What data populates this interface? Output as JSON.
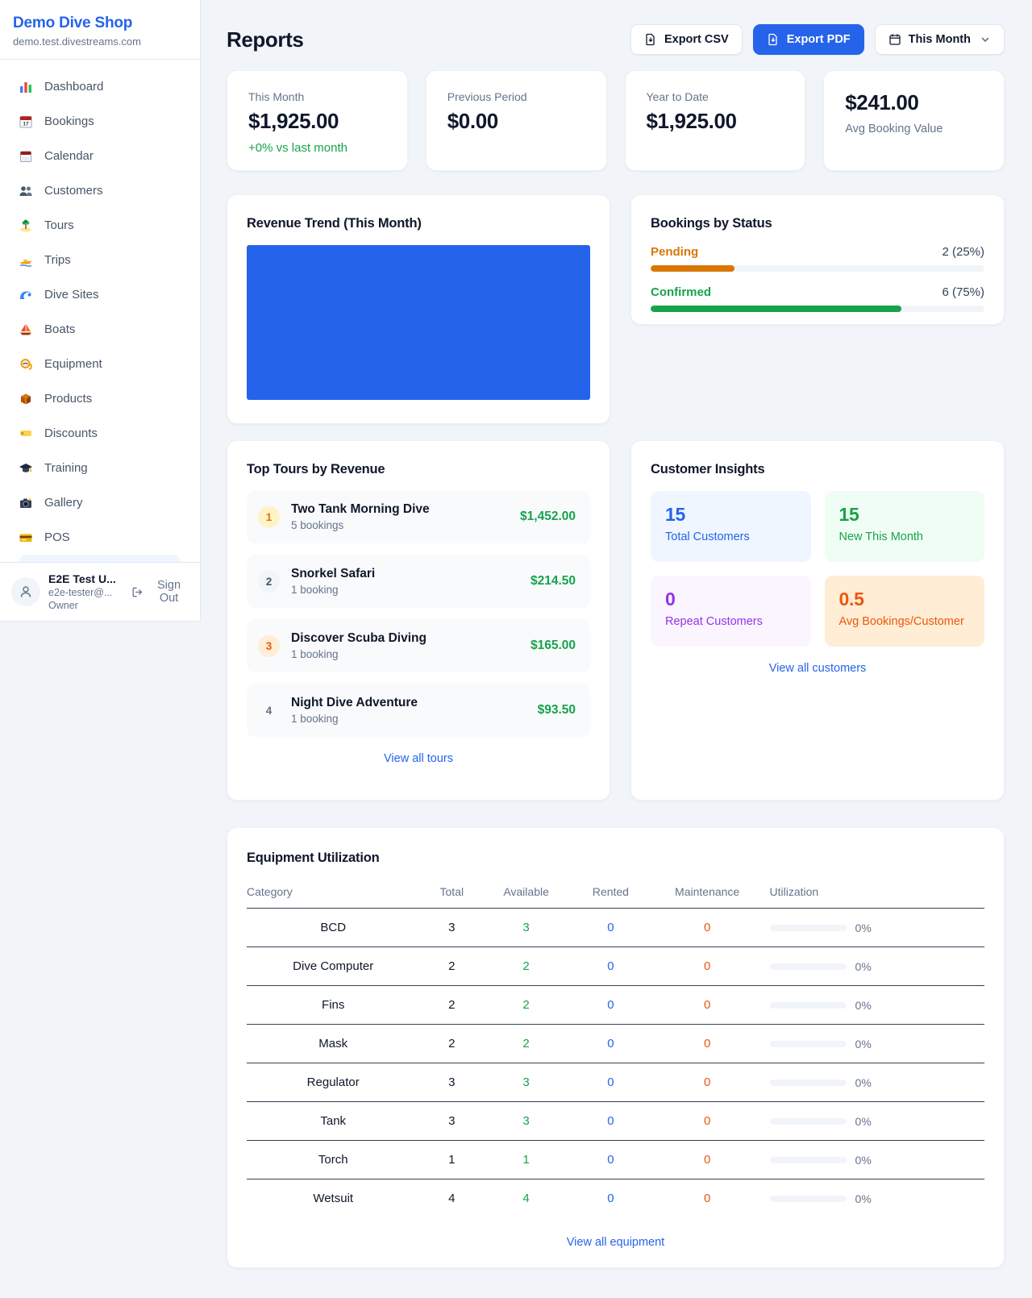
{
  "colors": {
    "accent": "#2563eb",
    "success": "#16a34a",
    "pending": "#d97706",
    "maintenance": "#ea580c",
    "purple": "#9333ea",
    "link": "#2563eb"
  },
  "sidebar": {
    "shop_name": "Demo Dive Shop",
    "shop_domain": "demo.test.divestreams.com",
    "items": [
      {
        "icon": "dashboard-icon",
        "label": "Dashboard"
      },
      {
        "icon": "bookings-icon",
        "label": "Bookings"
      },
      {
        "icon": "calendar-icon",
        "label": "Calendar"
      },
      {
        "icon": "customers-icon",
        "label": "Customers"
      },
      {
        "icon": "tours-icon",
        "label": "Tours"
      },
      {
        "icon": "trips-icon",
        "label": "Trips"
      },
      {
        "icon": "dive-sites-icon",
        "label": "Dive Sites"
      },
      {
        "icon": "boats-icon",
        "label": "Boats"
      },
      {
        "icon": "equipment-icon",
        "label": "Equipment"
      },
      {
        "icon": "products-icon",
        "label": "Products"
      },
      {
        "icon": "discounts-icon",
        "label": "Discounts"
      },
      {
        "icon": "training-icon",
        "label": "Training"
      },
      {
        "icon": "gallery-icon",
        "label": "Gallery"
      },
      {
        "icon": "pos-icon",
        "label": "POS"
      }
    ],
    "user": {
      "name": "E2E Test U...",
      "email": "e2e-tester@...",
      "role": "Owner",
      "sign_out": "Sign Out"
    }
  },
  "header": {
    "title": "Reports",
    "export_csv": "Export CSV",
    "export_pdf": "Export PDF",
    "period": "This Month"
  },
  "stats": [
    {
      "label": "This Month",
      "value": "$1,925.00",
      "delta": "+0% vs last month"
    },
    {
      "label": "Previous Period",
      "value": "$0.00"
    },
    {
      "label": "Year to Date",
      "value": "$1,925.00"
    },
    {
      "label": "Avg Booking Value",
      "value": "$241.00"
    }
  ],
  "revenue_trend": {
    "title": "Revenue Trend (This Month)",
    "bar_color": "#2563eb"
  },
  "bookings_by_status": {
    "title": "Bookings by Status",
    "rows": [
      {
        "label": "Pending",
        "count_text": "2 (25%)",
        "pct": 25,
        "color": "#d97706"
      },
      {
        "label": "Confirmed",
        "count_text": "6 (75%)",
        "pct": 75,
        "color": "#16a34a"
      }
    ]
  },
  "top_tours": {
    "title": "Top Tours by Revenue",
    "view_all": "View all tours",
    "rows": [
      {
        "rank": "1",
        "name": "Two Tank Morning Dive",
        "bookings": "5 bookings",
        "revenue": "$1,452.00"
      },
      {
        "rank": "2",
        "name": "Snorkel Safari",
        "bookings": "1 booking",
        "revenue": "$214.50"
      },
      {
        "rank": "3",
        "name": "Discover Scuba Diving",
        "bookings": "1 booking",
        "revenue": "$165.00"
      },
      {
        "rank": "4",
        "name": "Night Dive Adventure",
        "bookings": "1 booking",
        "revenue": "$93.50"
      }
    ]
  },
  "customer_insights": {
    "title": "Customer Insights",
    "view_all": "View all customers",
    "tiles": [
      {
        "value": "15",
        "label": "Total Customers",
        "color": "#2563eb",
        "bg": "#eff6ff"
      },
      {
        "value": "15",
        "label": "New This Month",
        "color": "#16a34a",
        "bg": "#f0fdf4"
      },
      {
        "value": "0",
        "label": "Repeat Customers",
        "color": "#9333ea",
        "bg": "#faf5ff"
      },
      {
        "value": "0.5",
        "label": "Avg Bookings/Customer",
        "color": "#ea580c",
        "bg": "#ffedd5"
      }
    ]
  },
  "equipment": {
    "title": "Equipment Utilization",
    "view_all": "View all equipment",
    "columns": [
      "Category",
      "Total",
      "Available",
      "Rented",
      "Maintenance",
      "Utilization"
    ],
    "rows": [
      {
        "category": "BCD",
        "total": "3",
        "available": "3",
        "rented": "0",
        "maintenance": "0",
        "utilization": "0%",
        "utilization_pct": 0
      },
      {
        "category": "Dive Computer",
        "total": "2",
        "available": "2",
        "rented": "0",
        "maintenance": "0",
        "utilization": "0%",
        "utilization_pct": 0
      },
      {
        "category": "Fins",
        "total": "2",
        "available": "2",
        "rented": "0",
        "maintenance": "0",
        "utilization": "0%",
        "utilization_pct": 0
      },
      {
        "category": "Mask",
        "total": "2",
        "available": "2",
        "rented": "0",
        "maintenance": "0",
        "utilization": "0%",
        "utilization_pct": 0
      },
      {
        "category": "Regulator",
        "total": "3",
        "available": "3",
        "rented": "0",
        "maintenance": "0",
        "utilization": "0%",
        "utilization_pct": 0
      },
      {
        "category": "Tank",
        "total": "3",
        "available": "3",
        "rented": "0",
        "maintenance": "0",
        "utilization": "0%",
        "utilization_pct": 0
      },
      {
        "category": "Torch",
        "total": "1",
        "available": "1",
        "rented": "0",
        "maintenance": "0",
        "utilization": "0%",
        "utilization_pct": 0
      },
      {
        "category": "Wetsuit",
        "total": "4",
        "available": "4",
        "rented": "0",
        "maintenance": "0",
        "utilization": "0%",
        "utilization_pct": 0
      }
    ]
  }
}
